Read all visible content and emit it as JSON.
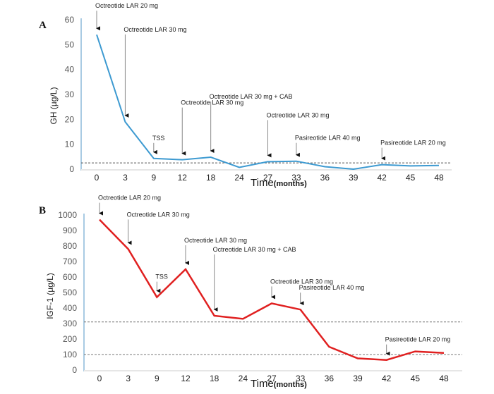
{
  "figure": {
    "panels": [
      "A",
      "B"
    ]
  },
  "chart_data": [
    {
      "panel": "A",
      "type": "line",
      "title": "",
      "xlabel": "Time",
      "xlabel_unit": "(months)",
      "ylabel": "GH (µg/L)",
      "ylim": [
        0,
        60
      ],
      "yticks": [
        0,
        10,
        20,
        30,
        40,
        50,
        60
      ],
      "categories": [
        "0",
        "3",
        "9",
        "12",
        "18",
        "24",
        "27",
        "33",
        "36",
        "39",
        "42",
        "45",
        "48"
      ],
      "series": [
        {
          "name": "GH",
          "color": "#3d9ad1",
          "values": [
            54,
            19,
            4.3,
            3.8,
            4.8,
            0.7,
            3.0,
            3.2,
            1.0,
            0.0,
            1.8,
            1.3,
            1.5
          ]
        }
      ],
      "reference_lines": [
        {
          "value": 2.5,
          "style": "dashed",
          "color": "#555555"
        }
      ],
      "annotations": [
        {
          "category": "0",
          "text": "Octreotide LAR 20 mg"
        },
        {
          "category": "3",
          "text": "Octreotide LAR 30 mg"
        },
        {
          "category": "9",
          "text": "TSS"
        },
        {
          "category": "12",
          "text": "Octreotide LAR 30 mg"
        },
        {
          "category": "18",
          "text": "Octreotide LAR 30 mg + CAB"
        },
        {
          "category": "27",
          "text": "Octreotide LAR 30 mg"
        },
        {
          "category": "33",
          "text": "Pasireotide LAR 40 mg"
        },
        {
          "category": "42",
          "text": "Pasireotide LAR 20 mg"
        }
      ],
      "grid": false,
      "legend": "none"
    },
    {
      "panel": "B",
      "type": "line",
      "title": "",
      "xlabel": "Time",
      "xlabel_unit": "(months)",
      "ylabel": "IGF-1 (µg/L)",
      "ylim": [
        0,
        1000
      ],
      "yticks": [
        0,
        100,
        200,
        300,
        400,
        500,
        600,
        700,
        800,
        900,
        1000
      ],
      "categories": [
        "0",
        "3",
        "9",
        "12",
        "18",
        "24",
        "27",
        "33",
        "36",
        "39",
        "42",
        "45",
        "48"
      ],
      "series": [
        {
          "name": "IGF-1",
          "color": "#e02020",
          "values": [
            970,
            780,
            470,
            650,
            350,
            330,
            430,
            390,
            150,
            75,
            65,
            120,
            110
          ]
        }
      ],
      "reference_lines": [
        {
          "value": 310,
          "style": "dashed",
          "color": "#777777"
        },
        {
          "value": 100,
          "style": "dashed",
          "color": "#777777"
        }
      ],
      "annotations": [
        {
          "category": "0",
          "text": "Octreotide LAR 20 mg"
        },
        {
          "category": "3",
          "text": "Octreotide LAR 30 mg"
        },
        {
          "category": "9",
          "text": "TSS"
        },
        {
          "category": "12",
          "text": "Octreotide LAR 30 mg"
        },
        {
          "category": "18",
          "text": "Octreotide LAR 30 mg + CAB"
        },
        {
          "category": "27",
          "text": "Octreotide LAR 30 mg"
        },
        {
          "category": "33",
          "text": "Pasireotide LAR 40 mg"
        },
        {
          "category": "42",
          "text": "Pasireotide LAR 20 mg"
        }
      ],
      "grid": false,
      "legend": "none"
    }
  ]
}
